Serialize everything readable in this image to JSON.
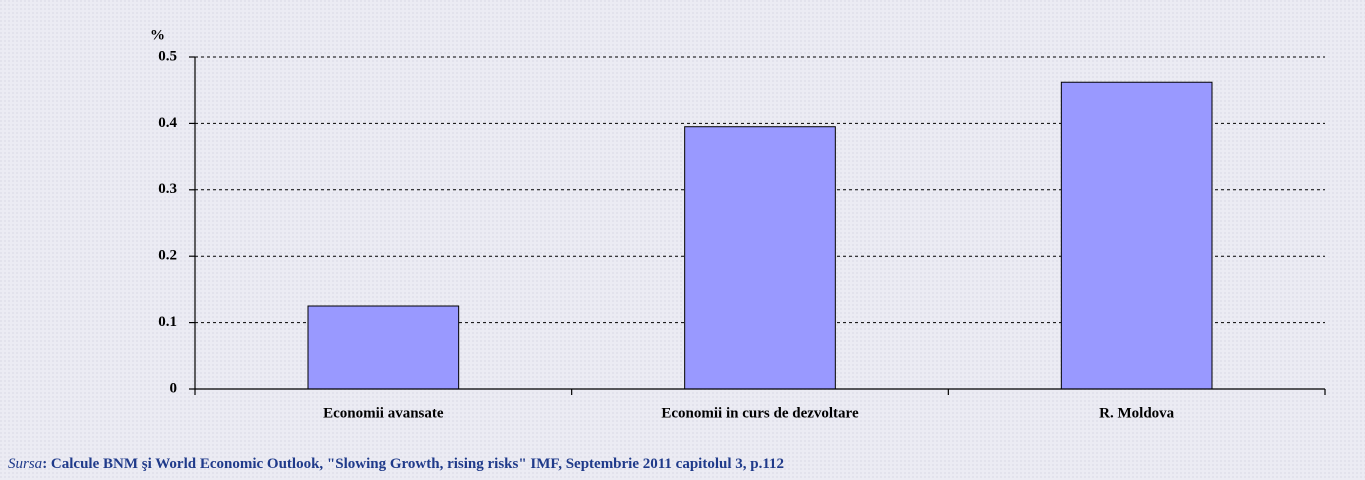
{
  "chart_data": {
    "type": "bar",
    "y_label": "%",
    "categories": [
      "Economii avansate",
      "Economii in curs de dezvoltare",
      "R. Moldova"
    ],
    "values": [
      0.125,
      0.395,
      0.462
    ],
    "color": "#9999ff",
    "ylim": [
      0,
      0.5
    ],
    "yticks": [
      0,
      0.1,
      0.2,
      0.3,
      0.4,
      0.5
    ],
    "grid": true,
    "source": {
      "label": "Sursa",
      "text": ": Calcule BNM şi World Economic Outlook, \"Slowing Growth, rising risks\" IMF, Septembrie 2011 capitolul 3, p.112"
    }
  }
}
